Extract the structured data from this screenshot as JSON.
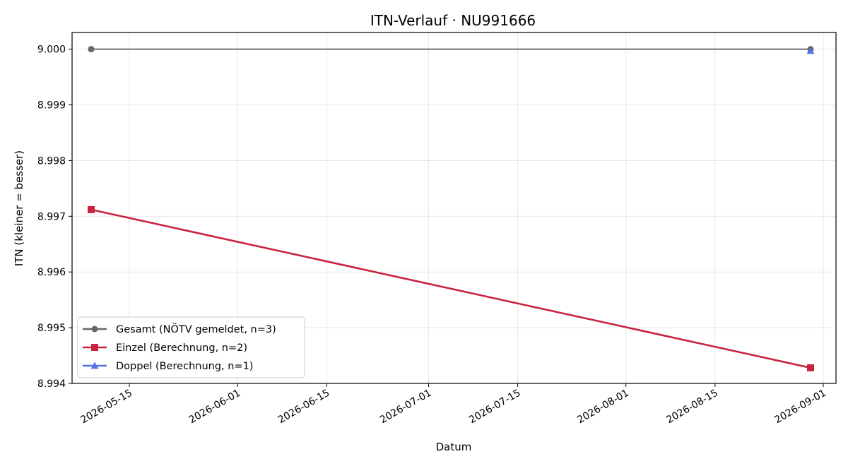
{
  "chart_data": {
    "type": "line",
    "title": "ITN-Verlauf · NU991666",
    "xlabel": "Datum",
    "ylabel": "ITN  (kleiner = besser)",
    "x_type": "date",
    "xlim": [
      "2026-05-06",
      "2026-09-03"
    ],
    "ylim": [
      8.994,
      9.0003
    ],
    "x_ticks": [
      "2026-05-15",
      "2026-06-01",
      "2026-06-15",
      "2026-07-01",
      "2026-07-15",
      "2026-08-01",
      "2026-08-15",
      "2026-09-01"
    ],
    "y_ticks": [
      "8.994",
      "8.995",
      "8.996",
      "8.997",
      "8.998",
      "8.999",
      "9.000"
    ],
    "grid": true,
    "legend_position": "lower-left",
    "series": [
      {
        "name": "Gesamt (NÖTV gemeldet, n=3)",
        "color": "#666666",
        "marker": "circle",
        "x": [
          "2026-05-09",
          "2026-08-30"
        ],
        "y": [
          9.0,
          9.0
        ]
      },
      {
        "name": "Einzel (Berechnung, n=2)",
        "color": "#c8233f",
        "marker": "square",
        "x": [
          "2026-05-09",
          "2026-08-30"
        ],
        "y": [
          8.99712,
          8.99428
        ]
      },
      {
        "name": "Doppel (Berechnung, n=1)",
        "color": "#5470e8",
        "marker": "triangle",
        "x": [
          "2026-08-30"
        ],
        "y": [
          8.99997
        ]
      }
    ]
  }
}
